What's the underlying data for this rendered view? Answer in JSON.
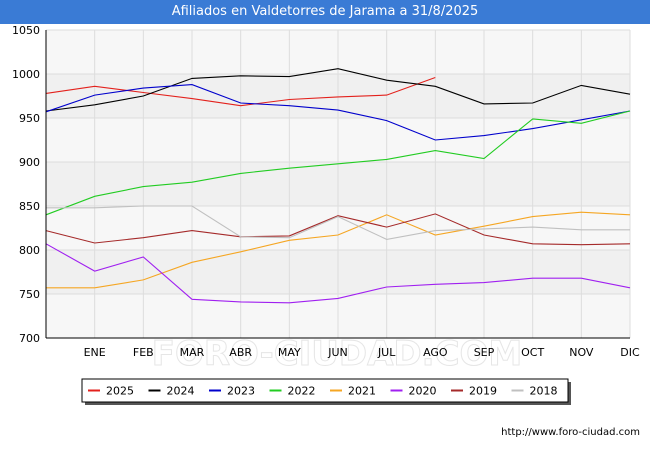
{
  "header": {
    "title": "Afiliados en Valdetorres de Jarama a 31/8/2025"
  },
  "footer": {
    "url": "http://www.foro-ciudad.com"
  },
  "watermark": "FORO-CIUDAD.COM",
  "chart_data": {
    "type": "line",
    "title": "Afiliados en Valdetorres de Jarama a 31/8/2025",
    "xlabel": "",
    "ylabel": "",
    "categories": [
      "",
      "ENE",
      "FEB",
      "MAR",
      "ABR",
      "MAY",
      "JUN",
      "JUL",
      "AGO",
      "SEP",
      "OCT",
      "NOV",
      "DIC"
    ],
    "ylim": [
      700,
      1050
    ],
    "yticks": [
      700,
      750,
      800,
      850,
      900,
      950,
      1000,
      1050
    ],
    "grid": true,
    "legend": "bottom",
    "series": [
      {
        "name": "2025",
        "color": "#e3211c",
        "values": [
          978,
          986,
          979,
          972,
          964,
          971,
          974,
          976,
          996,
          null,
          null,
          null,
          null
        ]
      },
      {
        "name": "2024",
        "color": "#000000",
        "values": [
          958,
          965,
          975,
          995,
          998,
          997,
          1006,
          993,
          986,
          966,
          967,
          987,
          977
        ]
      },
      {
        "name": "2023",
        "color": "#0000cc",
        "values": [
          957,
          976,
          984,
          988,
          967,
          964,
          959,
          947,
          925,
          930,
          938,
          948,
          958
        ]
      },
      {
        "name": "2022",
        "color": "#22cc22",
        "values": [
          840,
          861,
          872,
          877,
          887,
          893,
          898,
          903,
          913,
          904,
          949,
          944,
          958
        ]
      },
      {
        "name": "2021",
        "color": "#f5a623",
        "values": [
          757,
          757,
          766,
          786,
          798,
          811,
          817,
          840,
          817,
          827,
          838,
          843,
          840
        ]
      },
      {
        "name": "2020",
        "color": "#a020f0",
        "values": [
          807,
          776,
          792,
          744,
          741,
          740,
          745,
          758,
          761,
          763,
          768,
          768,
          757
        ]
      },
      {
        "name": "2019",
        "color": "#a52a2a",
        "values": [
          822,
          808,
          814,
          822,
          815,
          816,
          839,
          826,
          841,
          817,
          807,
          806,
          807
        ]
      },
      {
        "name": "2018",
        "color": "#c0c0c0",
        "values": [
          848,
          848,
          850,
          850,
          815,
          814,
          838,
          812,
          822,
          824,
          826,
          823,
          823
        ]
      }
    ]
  }
}
